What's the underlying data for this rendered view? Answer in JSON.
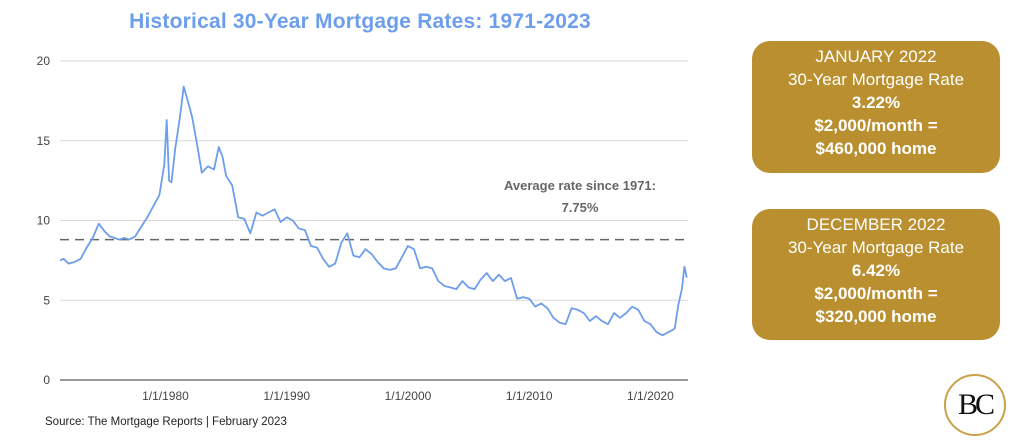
{
  "chart_data": {
    "type": "line",
    "title": "Historical 30-Year Mortgage Rates: 1971-2023",
    "xlim": [
      1971.3,
      2023.1
    ],
    "ylim": [
      0,
      20
    ],
    "y_ticks": [
      0,
      5,
      10,
      15,
      20
    ],
    "x_ticks": [
      {
        "label": "1/1/1980",
        "value": 1980
      },
      {
        "label": "1/1/1990",
        "value": 1990
      },
      {
        "label": "1/1/2000",
        "value": 2000
      },
      {
        "label": "1/1/2010",
        "value": 2010
      },
      {
        "label": "1/1/2020",
        "value": 2020
      }
    ],
    "grid": "horizontal",
    "line_color": "#6d9eeb",
    "series": [
      {
        "x": [
          1971.3,
          1971.6,
          1972.0,
          1972.5,
          1973.0,
          1973.5,
          1974.0,
          1974.5,
          1975.0,
          1975.4,
          1975.8,
          1976.2,
          1976.6,
          1977.0,
          1977.5,
          1978.0,
          1978.5,
          1979.0,
          1979.5,
          1979.9,
          1980.1,
          1980.3,
          1980.5,
          1980.8,
          1981.2,
          1981.5,
          1981.8,
          1982.2,
          1982.6,
          1983.0,
          1983.5,
          1984.0,
          1984.4,
          1984.7,
          1985.0,
          1985.5,
          1986.0,
          1986.5,
          1987.0,
          1987.5,
          1988.0,
          1988.5,
          1989.0,
          1989.5,
          1990.0,
          1990.5,
          1991.0,
          1991.5,
          1992.0,
          1992.5,
          1993.0,
          1993.5,
          1994.0,
          1994.5,
          1995.0,
          1995.5,
          1996.0,
          1996.5,
          1997.0,
          1997.5,
          1998.0,
          1998.5,
          1999.0,
          1999.5,
          2000.0,
          2000.5,
          2001.0,
          2001.5,
          2002.0,
          2002.5,
          2003.0,
          2003.5,
          2004.0,
          2004.5,
          2005.0,
          2005.5,
          2006.0,
          2006.5,
          2007.0,
          2007.5,
          2008.0,
          2008.5,
          2009.0,
          2009.5,
          2010.0,
          2010.5,
          2011.0,
          2011.5,
          2012.0,
          2012.5,
          2013.0,
          2013.5,
          2014.0,
          2014.5,
          2015.0,
          2015.5,
          2016.0,
          2016.5,
          2017.0,
          2017.5,
          2018.0,
          2018.5,
          2019.0,
          2019.5,
          2020.0,
          2020.5,
          2021.0,
          2021.5,
          2022.0,
          2022.3,
          2022.6,
          2022.8,
          2023.0
        ],
        "y": [
          7.5,
          7.6,
          7.3,
          7.4,
          7.6,
          8.3,
          8.9,
          9.8,
          9.3,
          9.0,
          8.9,
          8.8,
          8.9,
          8.8,
          9.0,
          9.6,
          10.2,
          10.9,
          11.6,
          13.5,
          16.3,
          12.5,
          12.4,
          14.5,
          16.5,
          18.4,
          17.6,
          16.5,
          14.8,
          13.0,
          13.4,
          13.2,
          14.6,
          14.0,
          12.8,
          12.2,
          10.2,
          10.1,
          9.2,
          10.5,
          10.3,
          10.5,
          10.7,
          9.9,
          10.2,
          10.0,
          9.5,
          9.4,
          8.4,
          8.3,
          7.6,
          7.1,
          7.3,
          8.6,
          9.2,
          7.8,
          7.7,
          8.2,
          7.9,
          7.4,
          7.0,
          6.9,
          7.0,
          7.7,
          8.4,
          8.2,
          7.0,
          7.1,
          7.0,
          6.2,
          5.9,
          5.8,
          5.7,
          6.2,
          5.8,
          5.7,
          6.3,
          6.7,
          6.2,
          6.6,
          6.2,
          6.4,
          5.1,
          5.2,
          5.1,
          4.6,
          4.8,
          4.5,
          3.9,
          3.6,
          3.5,
          4.5,
          4.4,
          4.2,
          3.7,
          4.0,
          3.7,
          3.5,
          4.2,
          3.9,
          4.2,
          4.6,
          4.4,
          3.7,
          3.5,
          3.0,
          2.8,
          3.0,
          3.22,
          4.7,
          5.7,
          7.1,
          6.42
        ]
      }
    ],
    "annotation": {
      "text_line1": "Average rate since 1971:",
      "text_line2": "7.75%",
      "value": 8.8
    }
  },
  "cards": [
    {
      "line1": "JANUARY 2022",
      "line2": "30-Year Mortgage Rate",
      "line3": "3.22%",
      "line4": "$2,000/month =",
      "line5": "$460,000 home"
    },
    {
      "line1": "DECEMBER 2022",
      "line2": "30-Year Mortgage Rate",
      "line3": "6.42%",
      "line4": "$2,000/month =",
      "line5": "$320,000 home"
    }
  ],
  "source": "Source: The Mortgage Reports | February 2023",
  "logo_text": "BC",
  "colors": {
    "line": "#6d9eeb",
    "title": "#6d9eeb",
    "card": "#b98f2f",
    "logo_ring": "#c9a24a",
    "dash": "#666666"
  }
}
